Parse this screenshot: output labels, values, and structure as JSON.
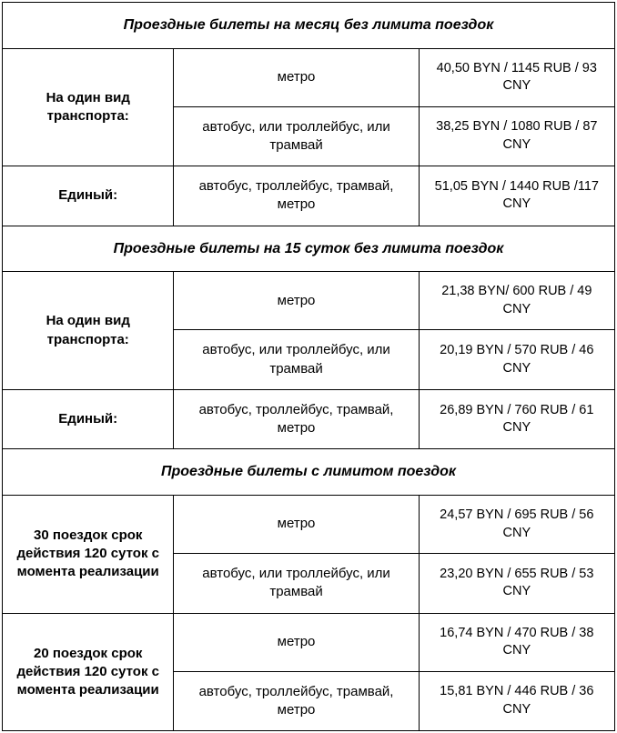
{
  "table": {
    "border_color": "#000000",
    "background_color": "#ffffff",
    "text_color": "#000000",
    "font_family": "Arial",
    "cell_fontsize": 15,
    "header_fontsize": 16,
    "col_widths_pct": [
      28,
      40,
      32
    ],
    "sections": [
      {
        "header": "Проездные билеты на месяц без лимита поездок",
        "groups": [
          {
            "label": "На один вид транспорта:",
            "rows": [
              {
                "desc": "метро",
                "price": "40,50 BYN / 1145 RUB / 93 CNY"
              },
              {
                "desc": "автобус, или троллейбус, или трамвай",
                "price": "38,25 BYN / 1080 RUB / 87 CNY"
              }
            ]
          },
          {
            "label": "Единый:",
            "rows": [
              {
                "desc": "автобус, троллейбус, трамвай, метро",
                "price": "51,05 BYN / 1440 RUB /117 CNY"
              }
            ]
          }
        ]
      },
      {
        "header": "Проездные билеты на 15 суток без лимита поездок",
        "groups": [
          {
            "label": "На один вид транспорта:",
            "rows": [
              {
                "desc": "метро",
                "price": "21,38 BYN/ 600 RUB / 49 CNY"
              },
              {
                "desc": "автобус, или троллейбус, или трамвай",
                "price": "20,19 BYN / 570 RUB / 46 CNY"
              }
            ]
          },
          {
            "label": "Единый:",
            "rows": [
              {
                "desc": "автобус, троллейбус, трамвай, метро",
                "price": "26,89 BYN / 760 RUB / 61 CNY"
              }
            ]
          }
        ]
      },
      {
        "header": "Проездные билеты с лимитом поездок",
        "groups": [
          {
            "label": "30 поездок срок действия 120 суток с момента реализации",
            "rows": [
              {
                "desc": "метро",
                "price": "24,57 BYN / 695 RUB / 56 CNY"
              },
              {
                "desc": "автобус, или троллейбус, или трамвай",
                "price": "23,20 BYN / 655 RUB / 53 CNY"
              }
            ]
          },
          {
            "label": "20 поездок срок действия 120 суток с момента реализации",
            "rows": [
              {
                "desc": "метро",
                "price": "16,74 BYN / 470 RUB / 38 CNY"
              },
              {
                "desc": "автобус, троллейбус, трамвай, метро",
                "price": "15,81 BYN / 446 RUB / 36 CNY"
              }
            ]
          }
        ]
      }
    ]
  }
}
